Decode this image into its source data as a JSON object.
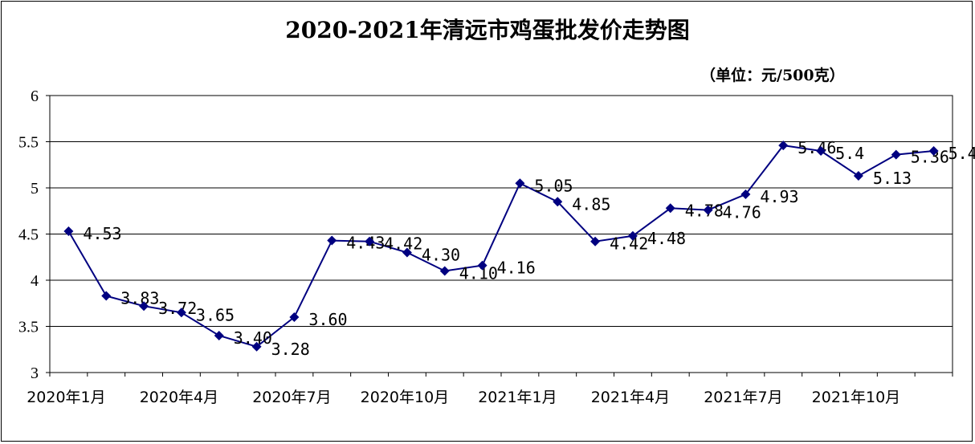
{
  "chart_data": {
    "type": "line",
    "title": "2020-2021年清远市鸡蛋批发价走势图",
    "unit": "（单位：元/500克）",
    "ylim": [
      3,
      6
    ],
    "yticks": [
      "3",
      "3.5",
      "4",
      "4.5",
      "5",
      "5.5",
      "6"
    ],
    "x_tick_labels": [
      "2020年1月",
      "2020年4月",
      "2020年7月",
      "2020年10月",
      "2021年1月",
      "2021年4月",
      "2021年7月",
      "2021年10月"
    ],
    "line_color": "#000080",
    "series": [
      {
        "values": [
          4.53,
          3.83,
          3.72,
          3.65,
          3.4,
          3.28,
          3.6,
          4.43,
          4.42,
          4.3,
          4.1,
          4.16,
          5.05,
          4.85,
          4.42,
          4.48,
          4.78,
          4.76,
          4.93,
          5.46,
          5.4,
          5.13,
          5.36,
          5.4
        ],
        "labels": [
          "4.53",
          "3.83",
          "3.72",
          "3.65",
          "3.40",
          "3.28",
          "3.60",
          "4.43",
          "4.42",
          "4.30",
          "4.10",
          "4.16",
          "5.05",
          "4.85",
          "4.42",
          "4.48",
          "4.78",
          "4.76",
          "4.93",
          "5.46",
          "5.4",
          "5.13",
          "5.36",
          "5.4"
        ]
      }
    ]
  }
}
